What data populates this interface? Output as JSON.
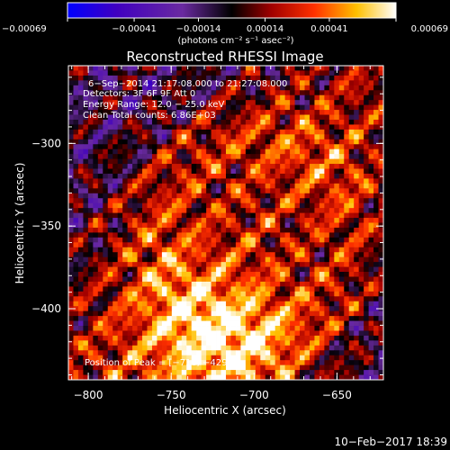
{
  "chart_data": {
    "type": "heatmap",
    "title": "Reconstructed RHESSI Image",
    "xlabel": "Heliocentric X (arcsec)",
    "ylabel": "Heliocentric Y (arcsec)",
    "xlim": [
      -812,
      -622
    ],
    "ylim": [
      -443,
      -253
    ],
    "x_ticks": [
      -800,
      -750,
      -700,
      -650
    ],
    "x_tick_labels": [
      "−800",
      "−750",
      "−700",
      "−650"
    ],
    "y_ticks": [
      -300,
      -350,
      -400
    ],
    "y_tick_labels": [
      "−300",
      "−350",
      "−400"
    ],
    "colorbar": {
      "min": -0.00069,
      "max": 0.00069,
      "ticks": [
        -0.00069,
        -0.00041,
        -0.00014,
        0.00014,
        0.00041,
        0.00069
      ],
      "tick_labels": [
        "−0.00069",
        "−0.00041",
        "−0.00014",
        "0.00014",
        "0.00041",
        "0.00069"
      ],
      "unit_label": "(photons cm⁻² s⁻¹ asec⁻²)",
      "colors": [
        "#0000ff",
        "#4000c0",
        "#6a2aa0",
        "#000000",
        "#800000",
        "#ff0000",
        "#ff8000",
        "#ffff00",
        "#ffffff"
      ]
    },
    "annotations": [
      "6−Sep−2014 21:17:08.000 to 21:27:08.000",
      "Detectors: 3F 6F 9F  Att 0",
      "Energy Range: 12.0 − 25.0 keV",
      "Clean     Total counts: 6.86E+03",
      "Position of Peak = [−718, −429]"
    ],
    "peak": [
      -718,
      -429
    ]
  },
  "footer": {
    "timestamp": "10−Feb−2017 18:39"
  }
}
